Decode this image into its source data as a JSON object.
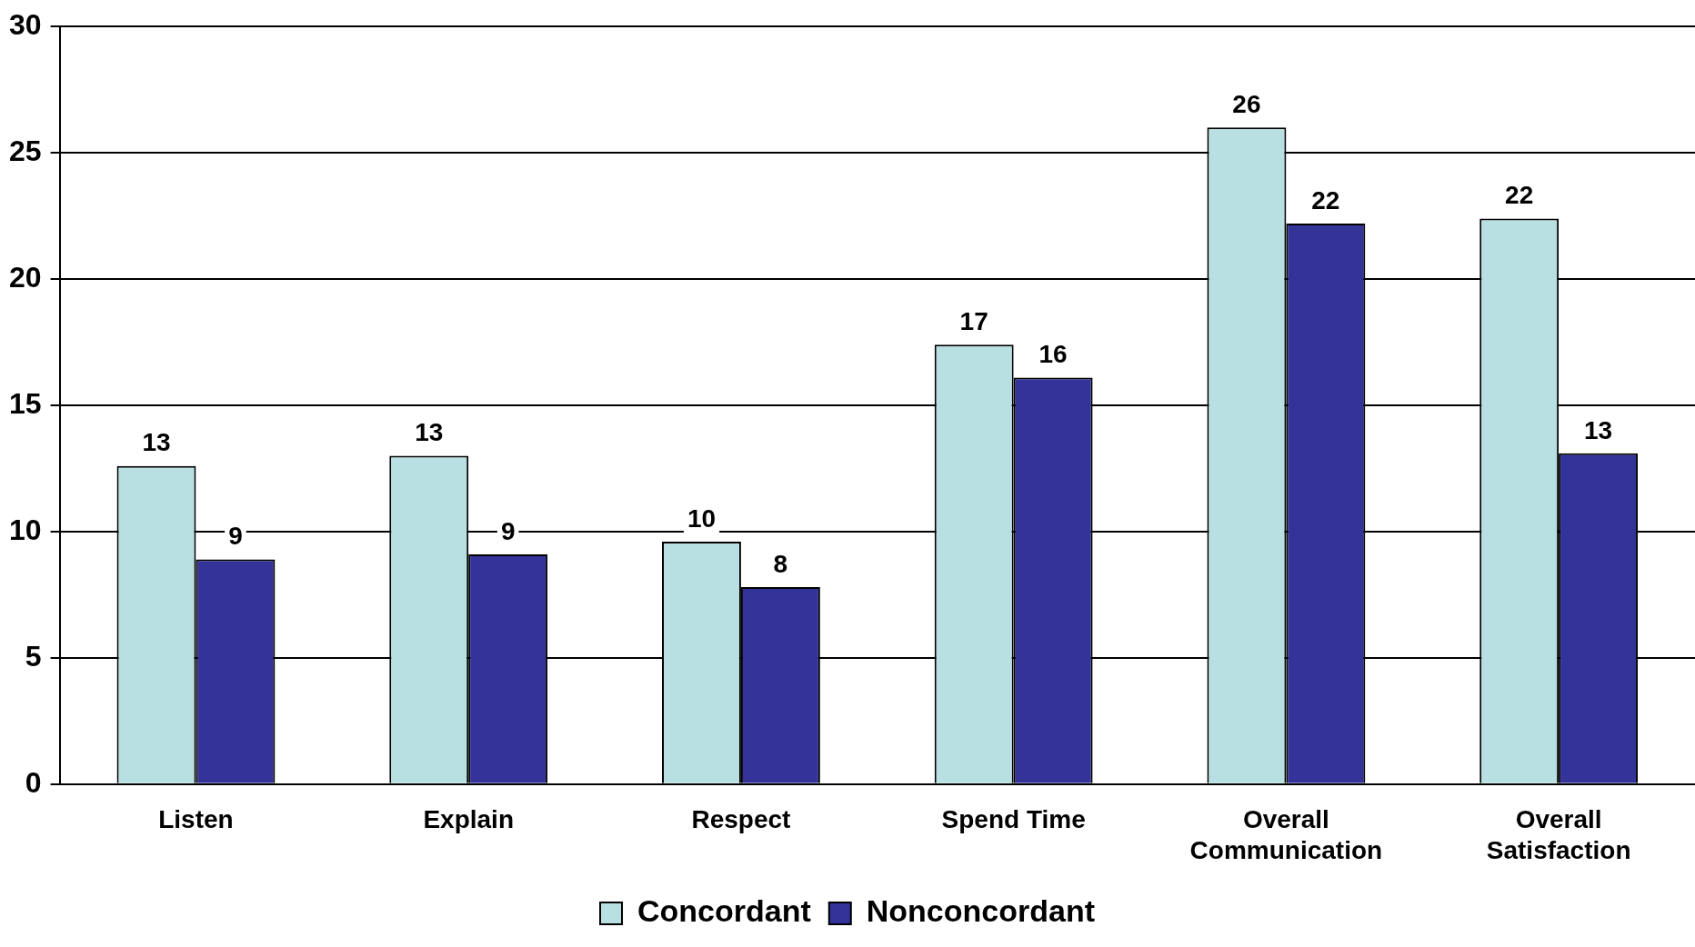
{
  "chart_data": {
    "type": "bar",
    "categories": [
      "Listen",
      "Explain",
      "Respect",
      "Spend Time",
      "Overall Communication",
      "Overall Satisfaction"
    ],
    "series": [
      {
        "name": "Concordant",
        "color": "#b8dfe2",
        "values": [
          12.6,
          13.0,
          9.6,
          17.4,
          26.0,
          22.4
        ],
        "value_labels": [
          "13",
          "13",
          "10",
          "17",
          "26",
          "22"
        ]
      },
      {
        "name": "Nonconcordant",
        "color": "#333399",
        "values": [
          8.9,
          9.1,
          7.8,
          16.1,
          22.2,
          13.1
        ],
        "value_labels": [
          "9",
          "9",
          "8",
          "16",
          "22",
          "13"
        ]
      }
    ],
    "ylim": [
      0,
      30
    ],
    "yticks": [
      0,
      5,
      10,
      15,
      20,
      25,
      30
    ],
    "grid": "y",
    "legend": "bottom"
  }
}
